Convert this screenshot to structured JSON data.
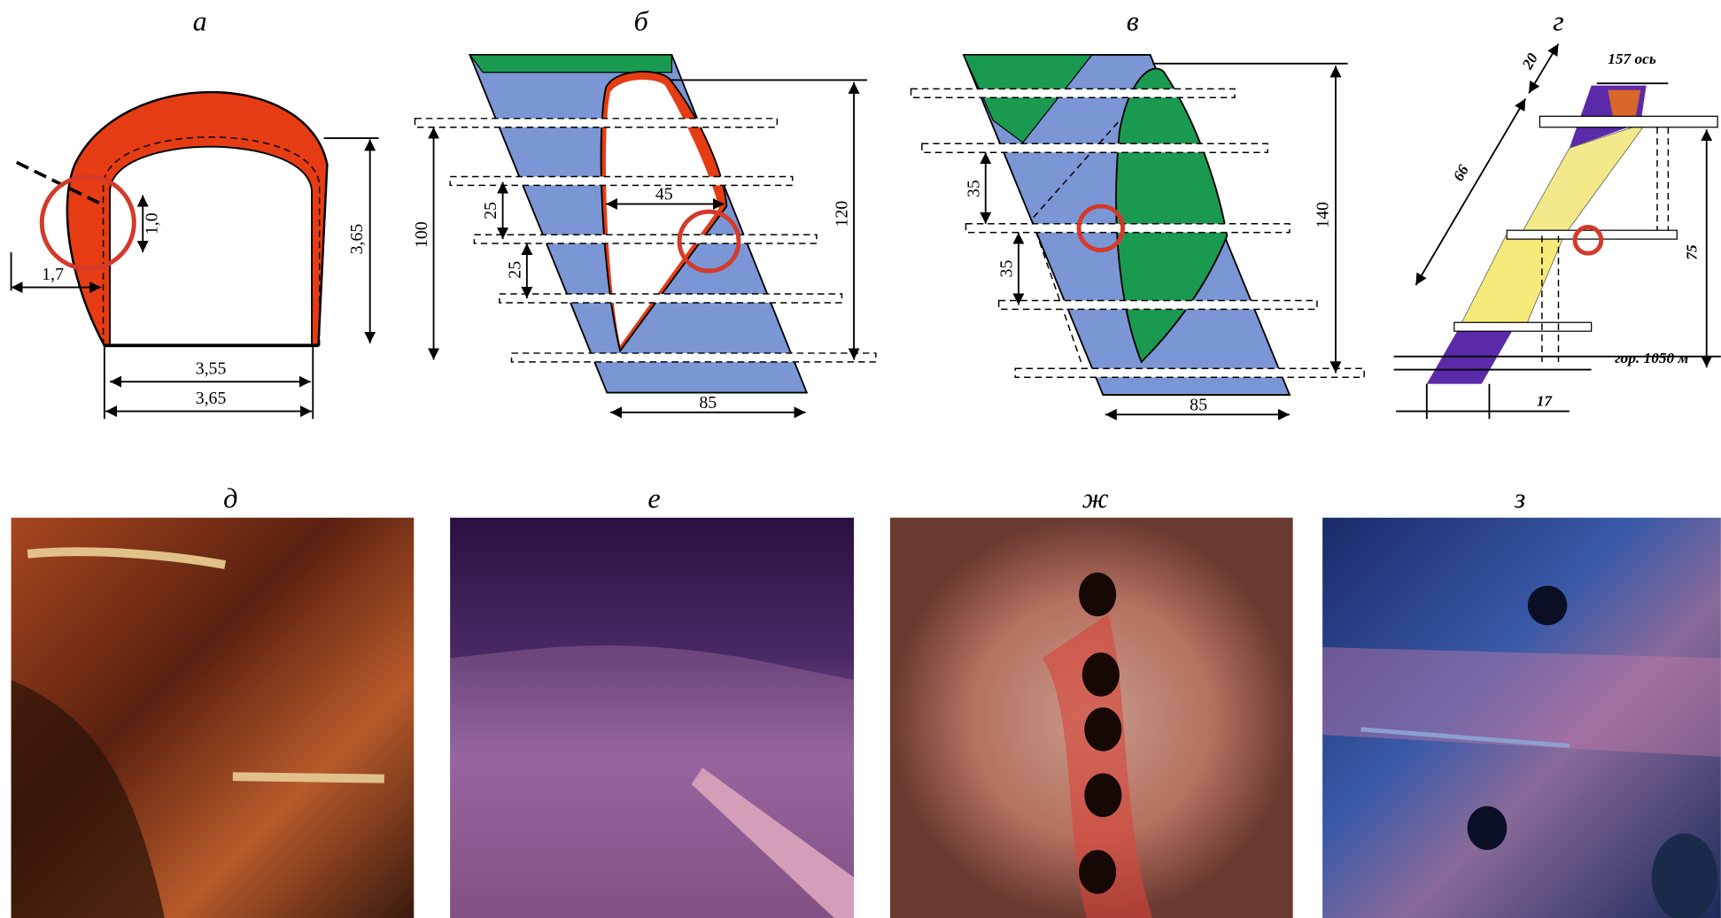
{
  "panels": [
    {
      "label": "а",
      "dims": [
        "1,0",
        "1,7",
        "3,65",
        "3,55",
        "3,65"
      ]
    },
    {
      "label": "б",
      "dims": [
        "25",
        "25",
        "45",
        "100",
        "120",
        "85"
      ]
    },
    {
      "label": "в",
      "dims": [
        "35",
        "35",
        "140",
        "85"
      ]
    },
    {
      "label": "г",
      "dims": [
        "20",
        "157 ось",
        "66",
        "75",
        "гор. 1050 м",
        "17"
      ]
    }
  ],
  "photos": [
    {
      "label": "д"
    },
    {
      "label": "е"
    },
    {
      "label": "ж"
    },
    {
      "label": "з"
    }
  ]
}
